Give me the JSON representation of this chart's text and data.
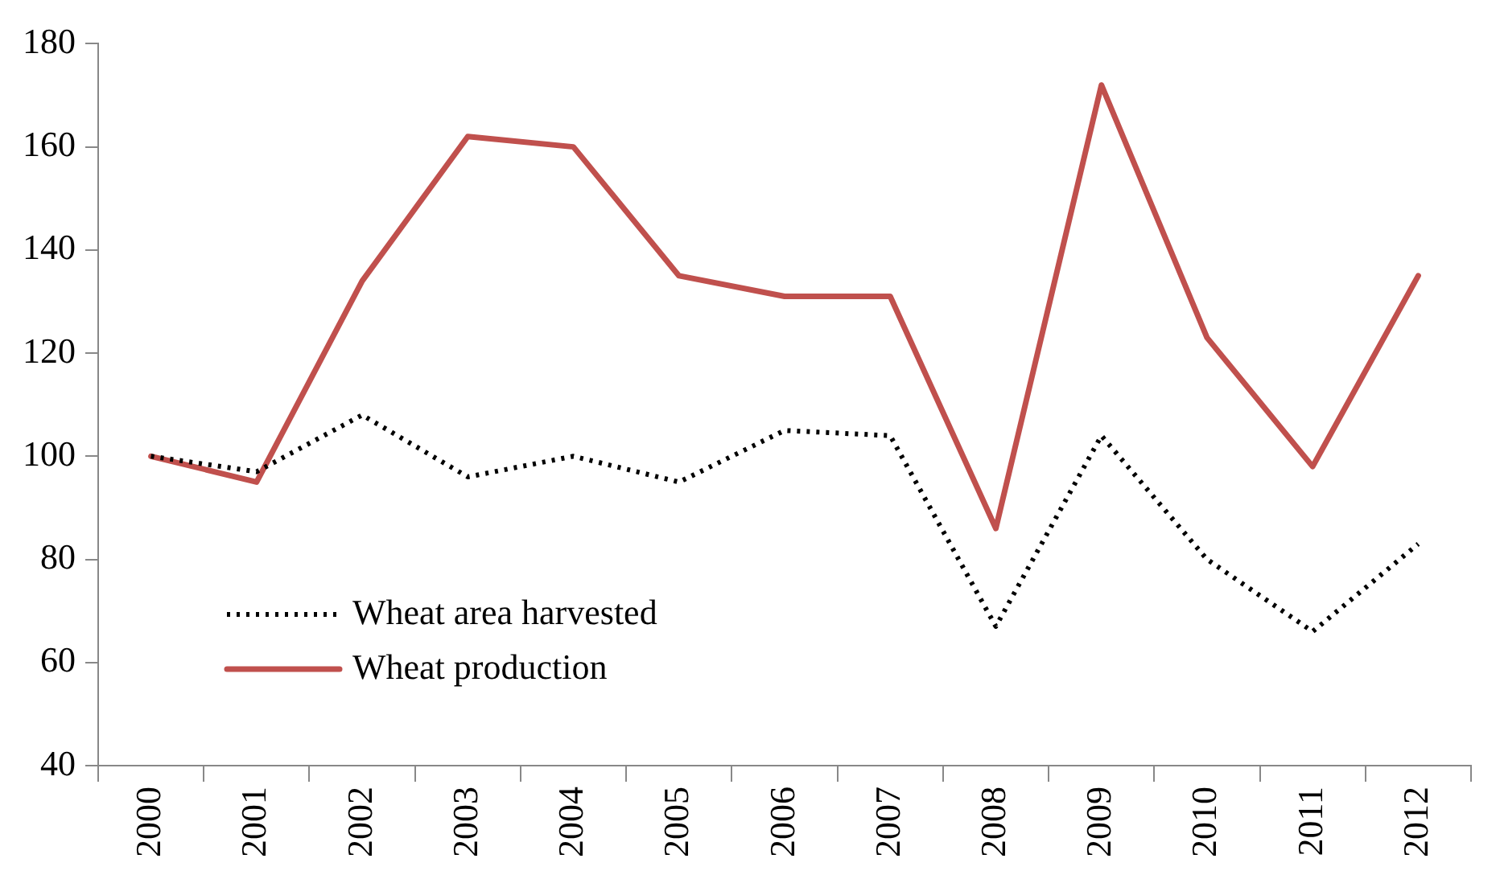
{
  "chart_data": {
    "type": "line",
    "categories": [
      "2000",
      "2001",
      "2002",
      "2003",
      "2004",
      "2005",
      "2006",
      "2007",
      "2008",
      "2009",
      "2010",
      "2011",
      "2012"
    ],
    "series": [
      {
        "name": "Wheat area harvested",
        "color": "#000000",
        "line_style": "dotted",
        "values": [
          100,
          97,
          108,
          96,
          100,
          95,
          105,
          104,
          67,
          104,
          80,
          66,
          83
        ]
      },
      {
        "name": "Wheat production",
        "color": "#c0504d",
        "line_style": "solid",
        "values": [
          100,
          95,
          134,
          162,
          160,
          135,
          131,
          131,
          86,
          172,
          123,
          98,
          135
        ]
      }
    ],
    "ylim": [
      40,
      180
    ],
    "yticks": [
      40,
      60,
      80,
      100,
      120,
      140,
      160,
      180
    ],
    "grid": false,
    "legend": "bottom left",
    "marker": "none"
  }
}
